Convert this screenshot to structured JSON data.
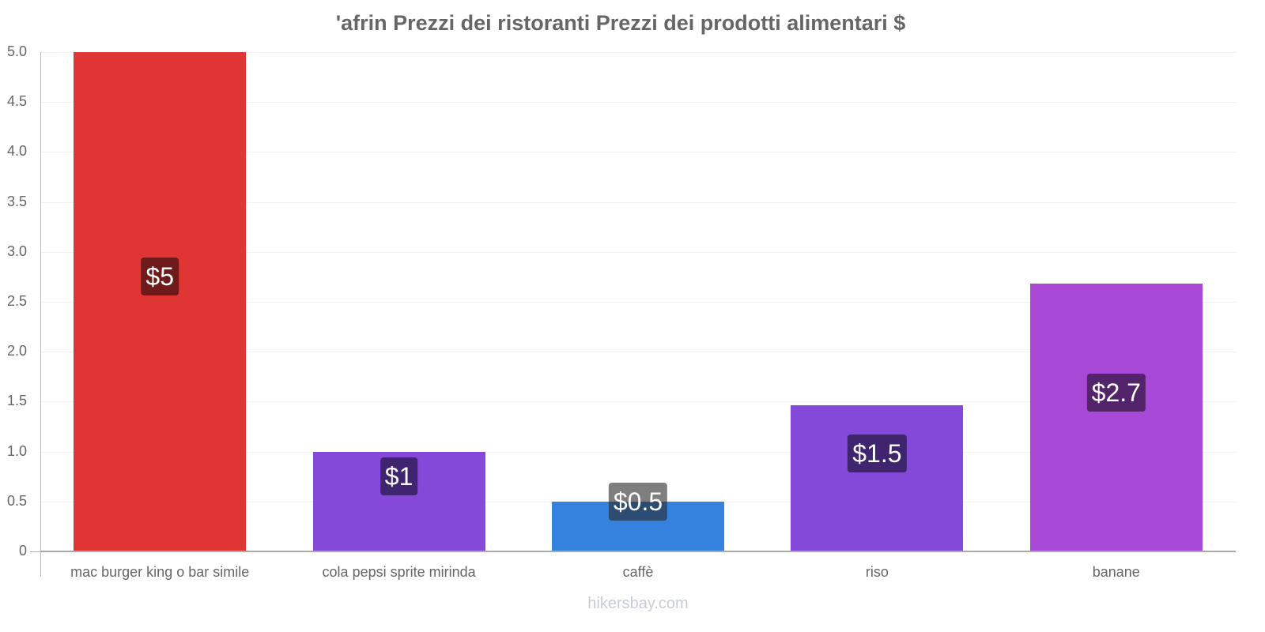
{
  "chart_data": {
    "type": "bar",
    "title": "'afrin Prezzi dei ristoranti Prezzi dei prodotti alimentari $",
    "xlabel": "",
    "ylabel": "",
    "ylim": [
      0,
      5.0
    ],
    "grid": true,
    "legend": "none",
    "yticks": [
      "0",
      "0.5",
      "1.0",
      "1.5",
      "2.0",
      "2.5",
      "3.0",
      "3.5",
      "4.0",
      "4.5",
      "5.0"
    ],
    "categories": [
      "mac burger king o bar simile",
      "cola pepsi sprite mirinda",
      "caffè",
      "riso",
      "banane"
    ],
    "values": [
      5.0,
      1.0,
      0.5,
      1.46,
      2.68
    ],
    "data_labels": [
      "$5",
      "$1",
      "$0.5",
      "$1.5",
      "$2.7"
    ],
    "colors": [
      "#e03535",
      "#8449d8",
      "#3583de",
      "#8449d8",
      "#a748d6"
    ],
    "label_bg_colors": [
      "#6f1a1a",
      "#3f2470",
      "rgba(40,40,40,0.6)",
      "#3f2470",
      "#54246b"
    ]
  },
  "watermark": "hikersbay.com"
}
